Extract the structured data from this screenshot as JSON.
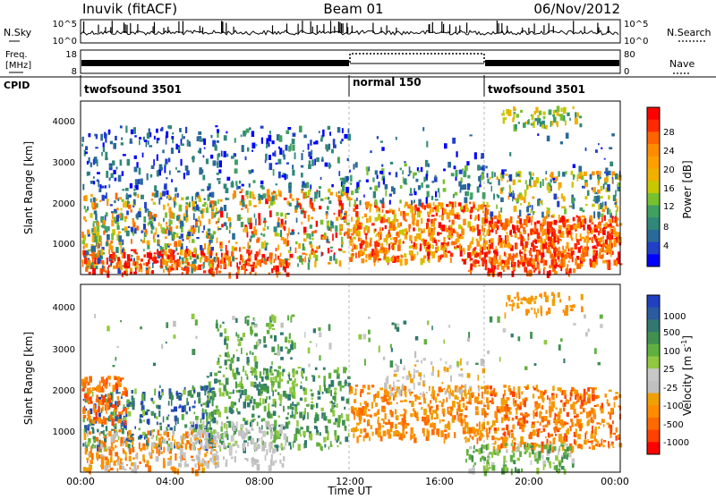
{
  "header": {
    "station": "Inuvik (fitACF)",
    "beam": "Beam 01",
    "date": "06/Nov/2012"
  },
  "top_panels": {
    "nsky": {
      "label": "N.Sky",
      "right_label": "N.Search",
      "ticks": [
        "10^5",
        "10^0"
      ],
      "right_ticks": [
        "10^5",
        "10^0"
      ]
    },
    "freq": {
      "label_line1": "Freq.",
      "label_line2": "[MHz]",
      "right_label": "Nave",
      "ticks": [
        "18",
        "8"
      ],
      "right_ticks": [
        "80",
        "0"
      ]
    },
    "cpid": {
      "label": "CPID",
      "segments": [
        {
          "name": "twofsound 3501",
          "start_h": 0,
          "end_h": 12
        },
        {
          "name": "normal 150",
          "start_h": 12,
          "end_h": 18
        },
        {
          "name": "twofsound 3501",
          "start_h": 18,
          "end_h": 24
        }
      ]
    }
  },
  "power_panel": {
    "ylabel": "Slant Range [km]",
    "yticks": [
      "4000",
      "3000",
      "2000",
      "1000"
    ],
    "colorbar": {
      "label": "Power [dB]",
      "ticks": [
        "28",
        "24",
        "20",
        "16",
        "12",
        "8",
        "4"
      ],
      "colors": [
        "#ff0000",
        "#ff2a00",
        "#ff6400",
        "#ff8c00",
        "#ffa000",
        "#f0b000",
        "#c8c800",
        "#78c030",
        "#40a060",
        "#308878",
        "#2a6a98",
        "#2040c8",
        "#0000ff"
      ]
    }
  },
  "velocity_panel": {
    "ylabel": "Slant Range [km]",
    "yticks": [
      "4000",
      "3000",
      "2000",
      "1000"
    ],
    "colorbar": {
      "label_main": "Velocity [m s",
      "label_sup": "-1",
      "label_end": "]",
      "ticks": [
        "1000",
        "500",
        "100",
        "25",
        "-25",
        "-100",
        "-500",
        "-1000"
      ],
      "colors": [
        "#2040c0",
        "#2a5aa0",
        "#307870",
        "#409050",
        "#60b040",
        "#90c840",
        "#c8c8c8",
        "#c0c0c0",
        "#f0a000",
        "#ff8c00",
        "#ff6a00",
        "#ff4000",
        "#ff0000"
      ]
    }
  },
  "xaxis": {
    "label": "Time UT",
    "ticks": [
      "00:00",
      "04:00",
      "08:00",
      "12:00",
      "16:00",
      "20:00",
      "00:00"
    ]
  }
}
